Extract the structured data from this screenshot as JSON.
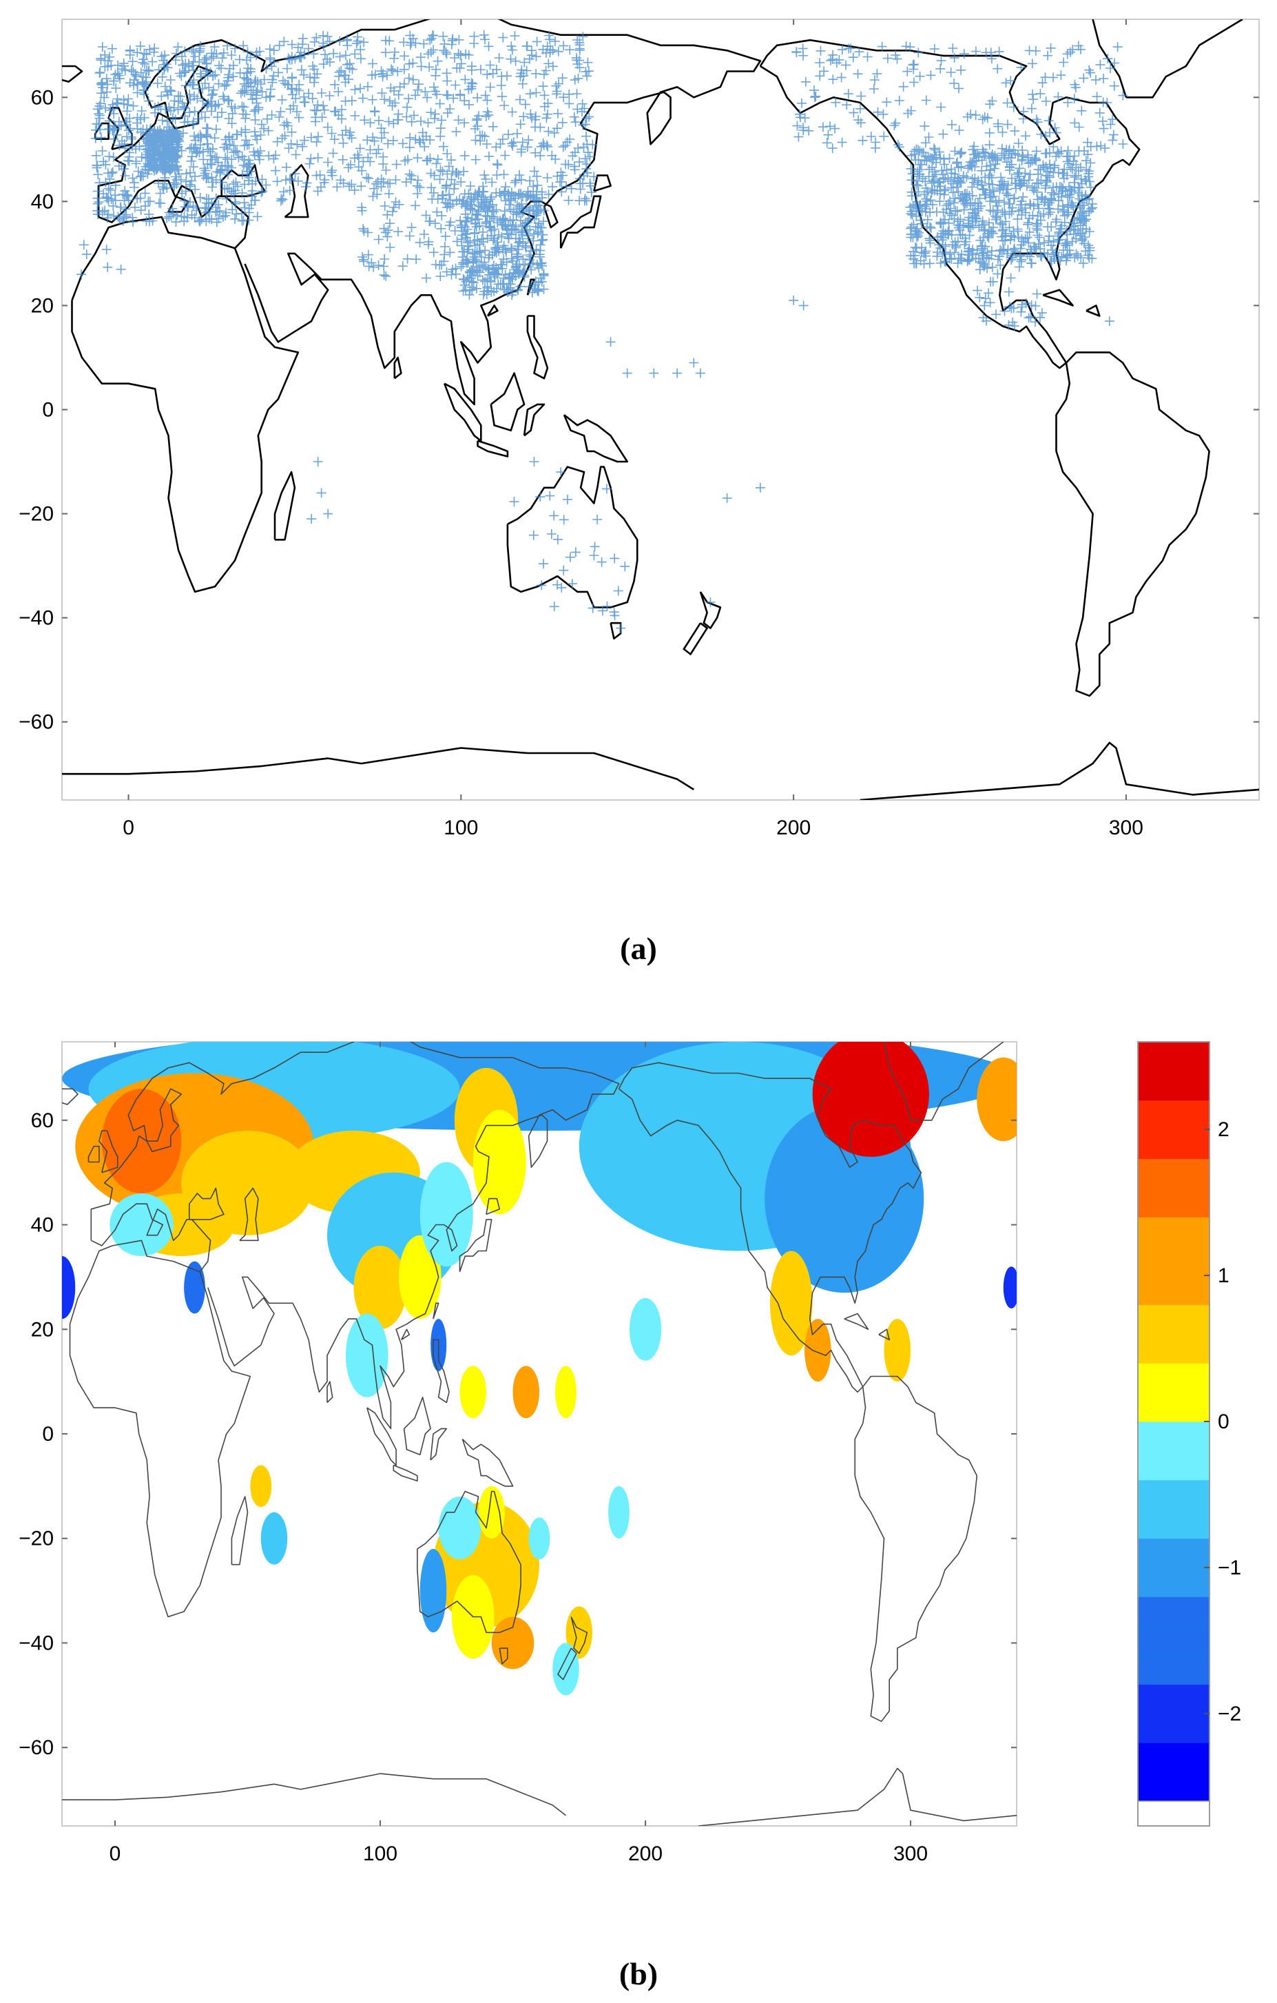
{
  "panel_a": {
    "caption": "(a)",
    "x_ticks": [
      0,
      100,
      200,
      300
    ],
    "y_ticks": [
      60,
      40,
      20,
      0,
      -20,
      -40,
      -60
    ],
    "x_range": [
      -20,
      340
    ],
    "y_range": [
      -75,
      75
    ],
    "marker": "+",
    "marker_color": "#3a86d0",
    "coast_color": "#000000"
  },
  "panel_b": {
    "caption": "(b)",
    "x_ticks": [
      0,
      100,
      200,
      300
    ],
    "y_ticks": [
      60,
      40,
      20,
      0,
      -20,
      -40,
      -60
    ],
    "x_range": [
      -20,
      340
    ],
    "y_range": [
      -75,
      75
    ],
    "coast_color": "#444444"
  },
  "colorbar": {
    "ticks": [
      2,
      1,
      0,
      -1,
      -2
    ],
    "range": [
      -2.6,
      2.6
    ],
    "colors_positive": [
      "#ffff00",
      "#ffd000",
      "#ffa000",
      "#ff6a00",
      "#ff2a00",
      "#e00000"
    ],
    "colors_negative": [
      "#70f0ff",
      "#40c8f8",
      "#2e9cf0",
      "#1f6ef0",
      "#1030f5",
      "#0000ff"
    ]
  }
}
